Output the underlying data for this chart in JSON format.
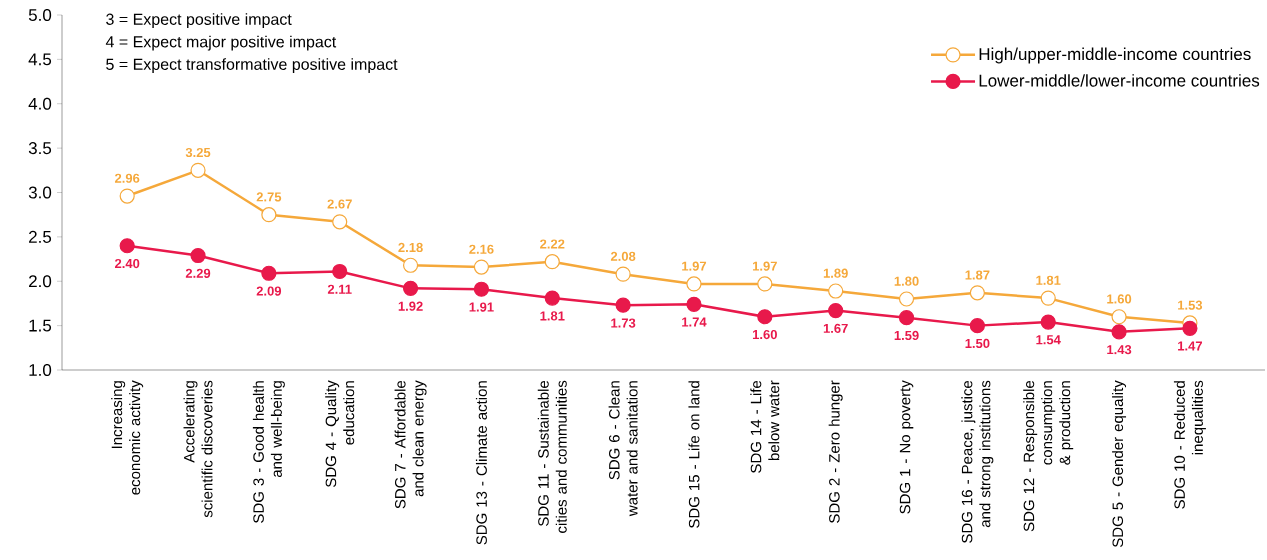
{
  "chart_data": {
    "type": "line",
    "categories": [
      "Increasing economic activity",
      "Accelerating scientific discoveries",
      "SDG 3 - Good health and well-being",
      "SDG 4 - Quality education",
      "SDG 7 - Affordable and clean energy",
      "SDG 13 - Climate action",
      "SDG 11 - Sustainable cities and communities",
      "SDG 6 - Clean water and sanitation",
      "SDG 15 - Life on land",
      "SDG 14 - Life below water",
      "SDG 2 - Zero hunger",
      "SDG 1 - No poverty",
      "SDG 16 - Peace, justice and strong institutions",
      "SDG 12 - Responsible consumption & production",
      "SDG 5 - Gender equality",
      "SDG 10 - Reduced inequalities"
    ],
    "series": [
      {
        "name": "High/upper-middle-income countries",
        "color": "#f5a83a",
        "values": [
          2.96,
          3.25,
          2.75,
          2.67,
          2.18,
          2.16,
          2.22,
          2.08,
          1.97,
          1.97,
          1.89,
          1.8,
          1.87,
          1.81,
          1.6,
          1.53
        ],
        "value_labels": [
          "2.96",
          "3.25",
          "2.75",
          "2.67",
          "2.18",
          "2.16",
          "2.22",
          "2.08",
          "1.97",
          "1.97",
          "1.89",
          "1.80",
          "1.87",
          "1.81",
          "1.60",
          "1.53"
        ]
      },
      {
        "name": "Lower-middle/lower-income countries",
        "color": "#e8194b",
        "values": [
          2.4,
          2.29,
          2.09,
          2.11,
          1.92,
          1.91,
          1.81,
          1.73,
          1.74,
          1.6,
          1.67,
          1.59,
          1.5,
          1.54,
          1.43,
          1.47
        ],
        "value_labels": [
          "2.40",
          "2.29",
          "2.09",
          "2.11",
          "1.92",
          "1.91",
          "1.81",
          "1.73",
          "1.74",
          "1.60",
          "1.67",
          "1.59",
          "1.50",
          "1.54",
          "1.43",
          "1.47"
        ]
      }
    ],
    "ylim": [
      1,
      5
    ],
    "yticks": [
      {
        "value": 1,
        "label": "1.0"
      },
      {
        "value": 1.5,
        "label": "1.5"
      },
      {
        "value": 2,
        "label": "2.0"
      },
      {
        "value": 2.5,
        "label": "2.5"
      },
      {
        "value": 3,
        "label": "3.0"
      },
      {
        "value": 3.5,
        "label": "3.5"
      },
      {
        "value": 4,
        "label": "4.0"
      },
      {
        "value": 4.5,
        "label": "4.5"
      },
      {
        "value": 5,
        "label": "5.0"
      }
    ],
    "annotations": [
      "3 = Expect positive impact",
      "4 = Expect major positive impact",
      "5 = Expect transformative positive impact"
    ],
    "legend": "top right",
    "marker": "circle",
    "line_style": "solid",
    "grid": false
  }
}
